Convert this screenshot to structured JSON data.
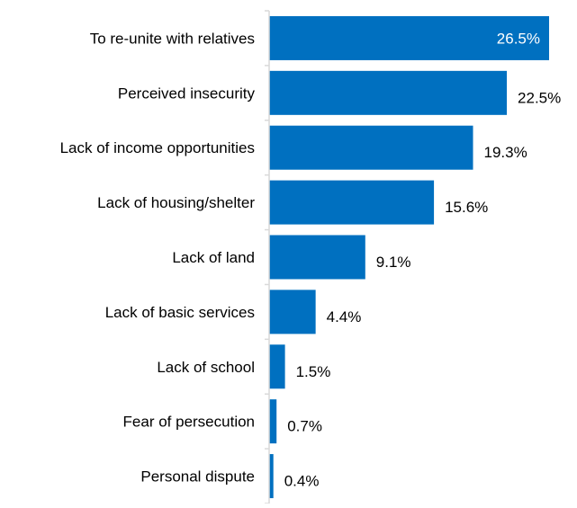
{
  "chart_data": {
    "type": "bar",
    "orientation": "horizontal",
    "categories": [
      "To re-unite with relatives",
      "Perceived insecurity",
      "Lack of income opportunities",
      "Lack of housing/shelter",
      "Lack of land",
      "Lack of basic services",
      "Lack of school",
      "Fear of persecution",
      "Personal dispute"
    ],
    "values": [
      26.5,
      22.5,
      19.3,
      15.6,
      9.1,
      4.4,
      1.5,
      0.7,
      0.4
    ],
    "data_labels": [
      "26.5%",
      "22.5%",
      "19.3%",
      "15.6%",
      "9.1%",
      "4.4%",
      "1.5%",
      "0.7%",
      "0.4%"
    ],
    "xlim": [
      0,
      26.5
    ],
    "grid": false,
    "legend": "none",
    "bar_color": "#0070c0",
    "inside_label_color": "#ffffff",
    "outside_label_color": "#000000",
    "axis_color": "#d9d9d9",
    "label_color": "#000000"
  }
}
